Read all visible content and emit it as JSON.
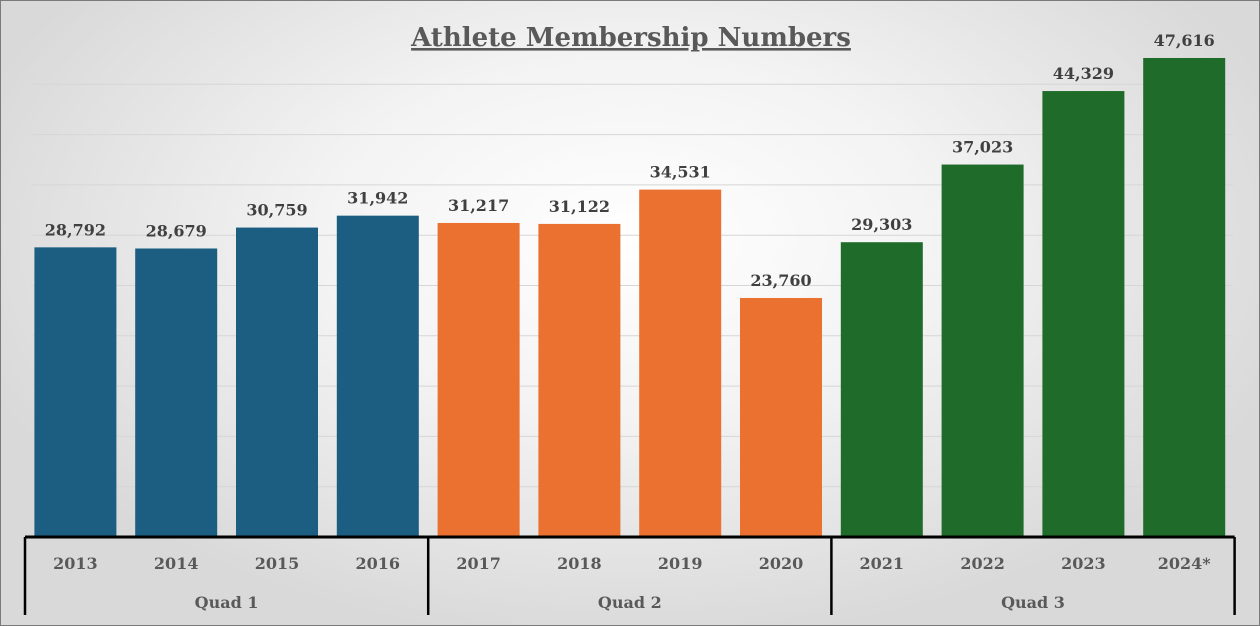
{
  "chart_data": {
    "type": "bar",
    "title": "Athlete Membership Numbers",
    "categories": [
      "2013",
      "2014",
      "2015",
      "2016",
      "2017",
      "2018",
      "2019",
      "2020",
      "2021",
      "2022",
      "2023",
      "2024*"
    ],
    "values": [
      28792,
      28679,
      30759,
      31942,
      31217,
      31122,
      34531,
      23760,
      29303,
      37023,
      44329,
      47616
    ],
    "value_labels": [
      "28,792",
      "28,679",
      "30,759",
      "31,942",
      "31,217",
      "31,122",
      "34,531",
      "23,760",
      "29,303",
      "37,023",
      "44,329",
      "47,616"
    ],
    "groups": [
      {
        "label": "Quad 1",
        "categories": [
          "2013",
          "2014",
          "2015",
          "2016"
        ],
        "color": "#1B5E82"
      },
      {
        "label": "Quad 2",
        "categories": [
          "2017",
          "2018",
          "2019",
          "2020"
        ],
        "color": "#EA7130"
      },
      {
        "label": "Quad 3",
        "categories": [
          "2021",
          "2022",
          "2023",
          "2024*"
        ],
        "color": "#1E6B2A"
      }
    ],
    "ylim": [
      0,
      50000
    ],
    "grid": true,
    "xlabel": "",
    "ylabel": ""
  }
}
